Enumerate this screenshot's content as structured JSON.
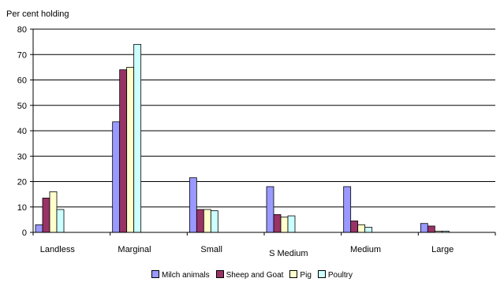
{
  "chart_data": {
    "type": "bar",
    "title": "",
    "ylabel": "Per cent holding",
    "xlabel": "",
    "ylim": [
      0,
      80
    ],
    "yticks": [
      0,
      10,
      20,
      30,
      40,
      50,
      60,
      70,
      80
    ],
    "grid": true,
    "legend_position": "bottom",
    "categories": [
      "Landless",
      "Marginal",
      "Small",
      "S Medium",
      "Medium",
      "Large"
    ],
    "series": [
      {
        "name": "Milch animals",
        "color": "#9999ff",
        "values": [
          3,
          43.5,
          21.5,
          18,
          18,
          3.5
        ]
      },
      {
        "name": "Sheep and Goat",
        "color": "#993366",
        "values": [
          13.5,
          64,
          9,
          7,
          4.5,
          2.5
        ]
      },
      {
        "name": "Pig",
        "color": "#ffffcc",
        "values": [
          16,
          65,
          9,
          6,
          3,
          0.5
        ]
      },
      {
        "name": "Poultry",
        "color": "#ccffff",
        "values": [
          9,
          74,
          8.5,
          6.5,
          2,
          0.5
        ]
      }
    ]
  }
}
